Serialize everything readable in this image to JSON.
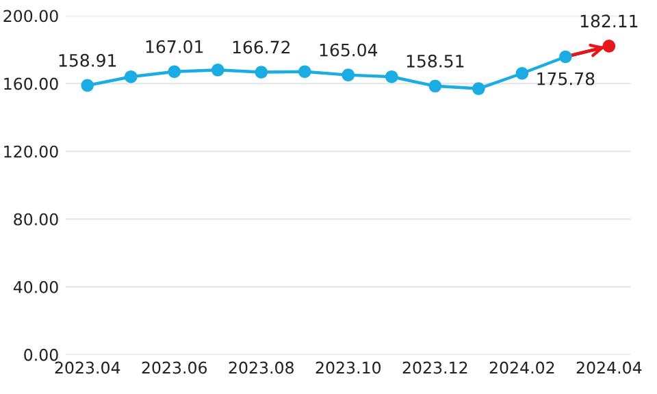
{
  "chart_data": {
    "type": "line",
    "categories": [
      "2023.04",
      null,
      "2023.06",
      null,
      "2023.08",
      null,
      "2023.10",
      null,
      "2023.12",
      null,
      "2024.02",
      null,
      "2024.04"
    ],
    "series": [
      {
        "color": "#1aace3",
        "colors": [
          "#1aace3",
          "#1aace3",
          "#1aace3",
          "#1aace3",
          "#1aace3",
          "#1aace3",
          "#1aace3",
          "#1aace3",
          "#1aace3",
          "#1aace3",
          "#1aace3",
          "#1aace3",
          "#e8161b"
        ],
        "values": [
          158.91,
          164,
          167.01,
          168,
          166.72,
          167,
          165.04,
          164,
          158.51,
          157,
          166,
          175.78,
          182.11
        ],
        "value_labels": [
          "158.91",
          null,
          "167.01",
          null,
          "166.72",
          null,
          "165.04",
          null,
          "158.51",
          null,
          null,
          "175.78",
          "182.11"
        ]
      }
    ],
    "ylim": [
      0,
      200
    ],
    "yticks": [
      {
        "value": 0,
        "label": "0.00"
      },
      {
        "value": 40,
        "label": "40.00"
      },
      {
        "value": 80,
        "label": "80.00"
      },
      {
        "value": 120,
        "label": "120.00"
      },
      {
        "value": 160,
        "label": "160.00"
      },
      {
        "value": 200,
        "label": "200.00"
      }
    ],
    "grid": "y",
    "marker": "circle",
    "line_style": "solid"
  }
}
